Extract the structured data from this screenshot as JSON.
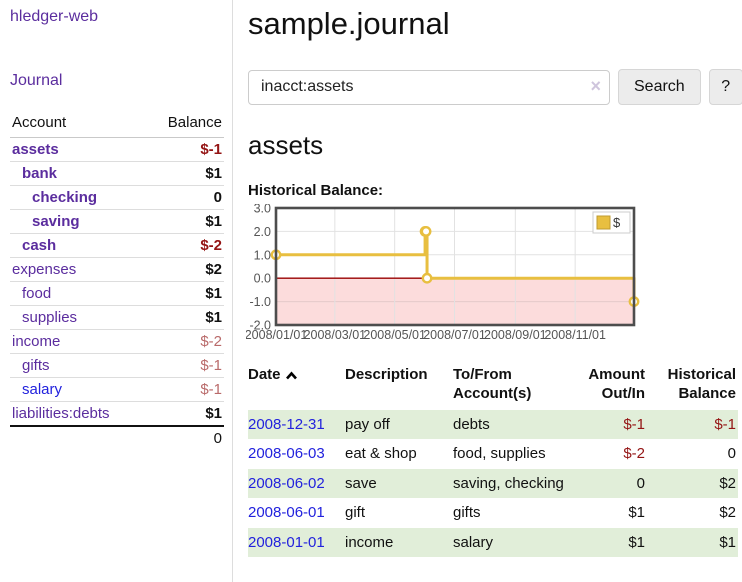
{
  "theme": {
    "purple": "#5b2d9e",
    "blue": "#2222dd",
    "neg": "#941414",
    "neg-muted": "#b96a6a",
    "row-green": "#e1eed9",
    "gold": "#e8bf40",
    "gold-dark": "#bf9b30",
    "pink": "#fcdcdc",
    "zero-red": "#990000",
    "grid": "#e2e2e2",
    "chart-border": "#4d4d4d",
    "tick": "#555555"
  },
  "app": {
    "title": "hledger-web",
    "nav_journal": "Journal"
  },
  "sidebar": {
    "header": {
      "account": "Account",
      "balance": "Balance"
    },
    "accounts": [
      {
        "name": "assets",
        "depth": 1,
        "bold": true,
        "color": "purple",
        "balance": "$-1",
        "balance_style": "strong-neg"
      },
      {
        "name": "bank",
        "depth": 2,
        "bold": true,
        "color": "purple",
        "balance": "$1",
        "balance_style": "black"
      },
      {
        "name": "checking",
        "depth": 3,
        "bold": true,
        "color": "purple",
        "balance": "0",
        "balance_style": "black"
      },
      {
        "name": "saving",
        "depth": 3,
        "bold": true,
        "color": "purple",
        "balance": "$1",
        "balance_style": "black"
      },
      {
        "name": "cash",
        "depth": 2,
        "bold": true,
        "color": "purple",
        "balance": "$-2",
        "balance_style": "strong-neg"
      },
      {
        "name": "expenses",
        "depth": 1,
        "bold": false,
        "color": "purple",
        "balance": "$2",
        "balance_style": "black"
      },
      {
        "name": "food",
        "depth": 2,
        "bold": false,
        "color": "purple",
        "balance": "$1",
        "balance_style": "black"
      },
      {
        "name": "supplies",
        "depth": 2,
        "bold": false,
        "color": "purple",
        "balance": "$1",
        "balance_style": "black"
      },
      {
        "name": "income",
        "depth": 1,
        "bold": false,
        "color": "purple",
        "balance": "$-2",
        "balance_style": "muted-neg"
      },
      {
        "name": "gifts",
        "depth": 2,
        "bold": false,
        "color": "purple",
        "balance": "$-1",
        "balance_style": "muted-neg"
      },
      {
        "name": "salary",
        "depth": 2,
        "bold": false,
        "color": "blue",
        "balance": "$-1",
        "balance_style": "muted-neg"
      },
      {
        "name": "liabilities:debts",
        "depth": 1,
        "bold": false,
        "color": "purple",
        "balance": "$1",
        "balance_style": "black"
      }
    ],
    "total": "0"
  },
  "main": {
    "title": "sample.journal",
    "search": {
      "value": "inacct:assets",
      "clear_icon": "×",
      "button_label": "Search",
      "help_label": "?"
    },
    "account_heading": "assets",
    "chart_label": "Historical Balance:"
  },
  "chart_data": {
    "type": "line",
    "step": true,
    "title": "Historical Balance:",
    "series": [
      {
        "name": "$",
        "color": "#e8bf40",
        "points": [
          [
            "2008-01-01",
            1
          ],
          [
            "2008-06-01",
            2
          ],
          [
            "2008-06-02",
            2
          ],
          [
            "2008-06-03",
            0
          ],
          [
            "2008-12-31",
            -1
          ]
        ]
      }
    ],
    "xlim": [
      "2008-01-01",
      "2008-12-31"
    ],
    "ylim": [
      -2,
      3
    ],
    "yticks": [
      {
        "v": 3,
        "label": "3.0"
      },
      {
        "v": 2,
        "label": "2.0"
      },
      {
        "v": 1,
        "label": "1.0"
      },
      {
        "v": 0,
        "label": "0.0"
      },
      {
        "v": -1,
        "label": "-1.0"
      },
      {
        "v": -2,
        "label": "-2.0"
      }
    ],
    "xticks": [
      {
        "d": "2008-01-01",
        "label": "2008/01/01"
      },
      {
        "d": "2008-03-01",
        "label": "2008/03/01"
      },
      {
        "d": "2008-05-01",
        "label": "2008/05/01"
      },
      {
        "d": "2008-07-01",
        "label": "2008/07/01"
      },
      {
        "d": "2008-09-01",
        "label": "2008/09/01"
      },
      {
        "d": "2008-11-01",
        "label": "2008/11/01"
      }
    ],
    "legend_position": "top-right",
    "grid": true
  },
  "transactions": {
    "columns": [
      "Date",
      "Description",
      "To/From Account(s)",
      "Amount Out/In",
      "Historical Balance"
    ],
    "rows": [
      {
        "date": "2008-12-31",
        "description": "pay off",
        "accounts": "debts",
        "amount": "$-1",
        "amount_neg": true,
        "balance": "$-1",
        "balance_neg": true
      },
      {
        "date": "2008-06-03",
        "description": "eat & shop",
        "accounts": "food, supplies",
        "amount": "$-2",
        "amount_neg": true,
        "balance": "0",
        "balance_neg": false
      },
      {
        "date": "2008-06-02",
        "description": "save",
        "accounts": "saving, checking",
        "amount": "0",
        "amount_neg": false,
        "balance": "$2",
        "balance_neg": false
      },
      {
        "date": "2008-06-01",
        "description": "gift",
        "accounts": "gifts",
        "amount": "$1",
        "amount_neg": false,
        "balance": "$2",
        "balance_neg": false
      },
      {
        "date": "2008-01-01",
        "description": "income",
        "accounts": "salary",
        "amount": "$1",
        "amount_neg": false,
        "balance": "$1",
        "balance_neg": false
      }
    ]
  }
}
